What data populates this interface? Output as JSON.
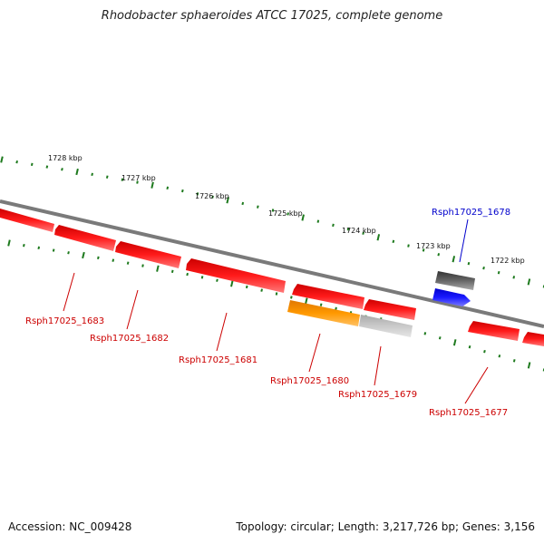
{
  "title": "Rhodobacter sphaeroides ATCC 17025, complete genome",
  "footer": {
    "accession": "Accession: NC_009428",
    "summary": "Topology: circular; Length: 3,217,726 bp; Genes: 3,156"
  },
  "colors": {
    "backbone": "#7a7a7a",
    "tick": "#1e7a1e",
    "gene_red": "#ee0000",
    "gene_orange": "#ff9900",
    "gene_gray": "#c8c8c8",
    "gene_dark": "#555555",
    "gene_blue": "#0000ee",
    "label_red": "#cc0000",
    "label_blue": "#0000cc"
  },
  "scale": {
    "ticks": [
      "1728 kbp",
      "1727 kbp",
      "1726 kbp",
      "1725 kbp",
      "1724 kbp",
      "1723 kbp",
      "1722 kbp"
    ]
  },
  "genes": [
    {
      "label": "",
      "color": "red",
      "strand": "reverse"
    },
    {
      "label": "Rsph17025_1683",
      "color": "red",
      "strand": "reverse"
    },
    {
      "label": "Rsph17025_1682",
      "color": "red",
      "strand": "reverse"
    },
    {
      "label": "Rsph17025_1681",
      "color": "red",
      "strand": "reverse"
    },
    {
      "label": "Rsph17025_1680",
      "color": "orange",
      "strand": "forward"
    },
    {
      "label": "",
      "color": "red",
      "strand": "reverse"
    },
    {
      "label": "Rsph17025_1679",
      "color": "gray",
      "strand": "forward"
    },
    {
      "label": "",
      "color": "red",
      "strand": "reverse"
    },
    {
      "label": "Rsph17025_1678",
      "color": "dark",
      "strand": "forward"
    },
    {
      "label": "",
      "color": "blue",
      "strand": "forward"
    },
    {
      "label": "Rsph17025_1677",
      "color": "red",
      "strand": "reverse"
    },
    {
      "label": "",
      "color": "red",
      "strand": "reverse"
    }
  ]
}
